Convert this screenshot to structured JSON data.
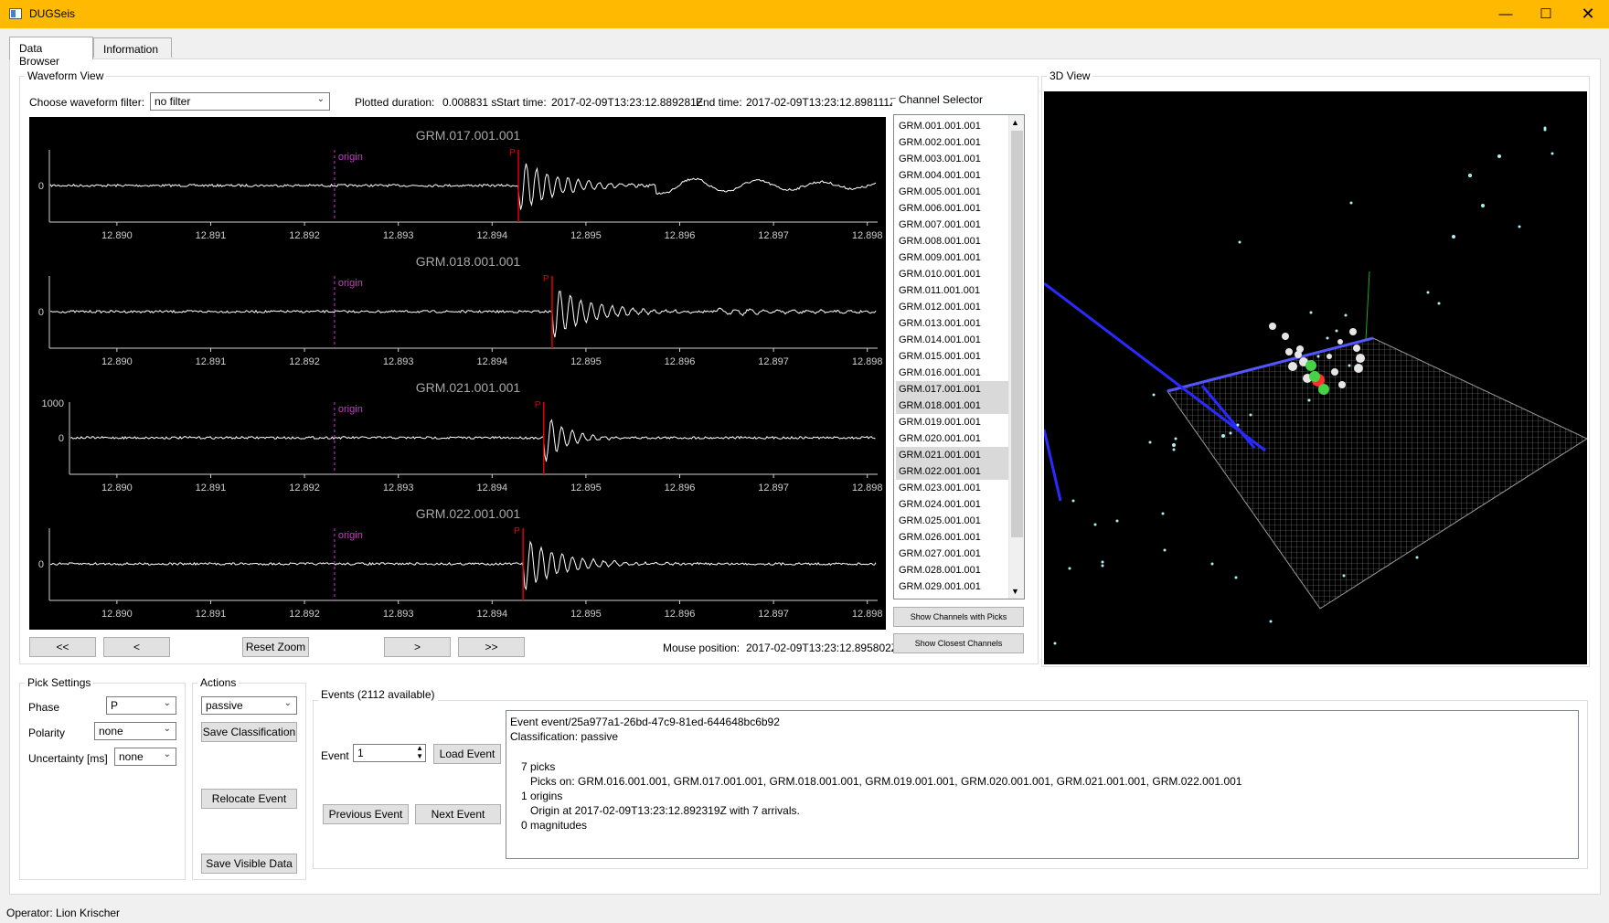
{
  "window": {
    "title": "DUGSeis"
  },
  "tabs": [
    "Data Browser",
    "Information"
  ],
  "waveform_view": {
    "title": "Waveform View",
    "filter_label": "Choose waveform filter:",
    "filter_value": "no filter",
    "duration_label": "Plotted duration:",
    "duration_value": "0.008831 s",
    "start_label": "Start time:",
    "start_value": "2017-02-09T13:23:12.889281Z",
    "end_label": "End time:",
    "end_value": "2017-02-09T13:23:12.898111Z",
    "ticks": [
      "12.890",
      "12.891",
      "12.892",
      "12.893",
      "12.894",
      "12.895",
      "12.896",
      "12.897",
      "12.898"
    ],
    "origin_label": "origin",
    "pick_label": "P",
    "traces": [
      {
        "name": "GRM.017.001.001",
        "ytick": "0",
        "pick_time": 12.89428
      },
      {
        "name": "GRM.018.001.001",
        "ytick": "0",
        "pick_time": 12.89464
      },
      {
        "name": "GRM.021.001.001",
        "ytick": "0",
        "ytick_top": "1000",
        "pick_time": 12.89455
      },
      {
        "name": "GRM.022.001.001",
        "ytick": "0",
        "pick_time": 12.89433
      }
    ],
    "origin_time": 12.89232,
    "x_range": [
      12.88928,
      12.89811
    ],
    "btn_first": "<<",
    "btn_prev": "<",
    "btn_reset": "Reset Zoom",
    "btn_next": ">",
    "btn_last": ">>",
    "mouse_label": "Mouse position:",
    "mouse_value": "2017-02-09T13:23:12.895802Z"
  },
  "channel_selector": {
    "title": "Channel Selector",
    "items": [
      "GRM.001.001.001",
      "GRM.002.001.001",
      "GRM.003.001.001",
      "GRM.004.001.001",
      "GRM.005.001.001",
      "GRM.006.001.001",
      "GRM.007.001.001",
      "GRM.008.001.001",
      "GRM.009.001.001",
      "GRM.010.001.001",
      "GRM.011.001.001",
      "GRM.012.001.001",
      "GRM.013.001.001",
      "GRM.014.001.001",
      "GRM.015.001.001",
      "GRM.016.001.001",
      "GRM.017.001.001",
      "GRM.018.001.001",
      "GRM.019.001.001",
      "GRM.020.001.001",
      "GRM.021.001.001",
      "GRM.022.001.001",
      "GRM.023.001.001",
      "GRM.024.001.001",
      "GRM.025.001.001",
      "GRM.026.001.001",
      "GRM.027.001.001",
      "GRM.028.001.001",
      "GRM.029.001.001"
    ],
    "selected": [
      "GRM.017.001.001",
      "GRM.018.001.001",
      "GRM.021.001.001",
      "GRM.022.001.001"
    ],
    "btn_picks": "Show Channels with Picks",
    "btn_closest": "Show Closest Channels"
  },
  "view3d": {
    "title": "3D View"
  },
  "pick_settings": {
    "title": "Pick Settings",
    "phase_label": "Phase",
    "phase_value": "P",
    "polarity_label": "Polarity",
    "polarity_value": "none",
    "uncertainty_label": "Uncertainty [ms]",
    "uncertainty_value": "none"
  },
  "actions": {
    "title": "Actions",
    "classification_value": "passive",
    "btn_save_class": "Save Classification",
    "btn_relocate": "Relocate Event",
    "btn_save_visible": "Save Visible Data"
  },
  "events": {
    "title": "Events (2112 available)",
    "event_label": "Event",
    "event_value": "1",
    "btn_load": "Load Event",
    "btn_prev": "Previous Event",
    "btn_next": "Next Event",
    "lines": [
      "Event event/25a977a1-26bd-47c9-81ed-644648bc6b92",
      "Classification: passive",
      "7 picks",
      "Picks on: GRM.016.001.001, GRM.017.001.001, GRM.018.001.001, GRM.019.001.001, GRM.020.001.001, GRM.021.001.001, GRM.022.001.001",
      "1 origins",
      "Origin at 2017-02-09T13:23:12.892319Z with 7 arrivals.",
      "0 magnitudes"
    ]
  },
  "status": {
    "operator": "Operator: Lion Krischer"
  },
  "colors": {
    "titlebar": "#ffb900",
    "origin": "#c83cc8",
    "pick": "#e00000",
    "trace": "#ffffff"
  }
}
